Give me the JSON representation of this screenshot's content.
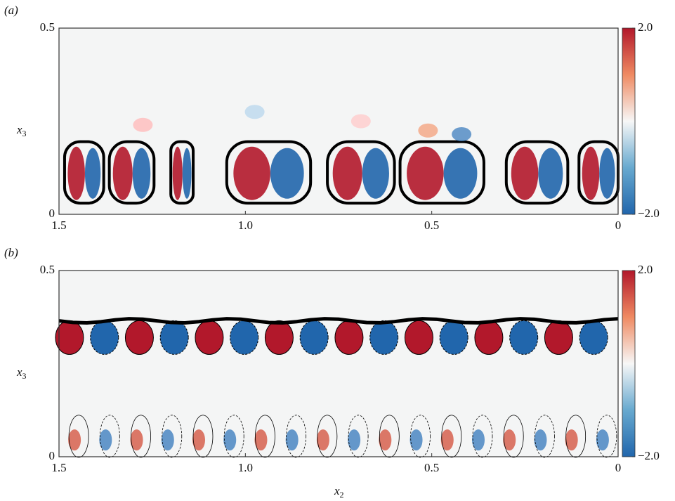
{
  "chart_data": [
    {
      "type": "heatmap",
      "panel_label": "(a)",
      "ylabel": "x3",
      "xlim": [
        1.5,
        0
      ],
      "xticks": [
        1.5,
        {
          "value": 1,
          "label": "1.0"
        },
        0.5,
        0
      ],
      "ylim": [
        0,
        0.5
      ],
      "yticks": [
        0,
        0.5
      ],
      "clim": [
        -2,
        2
      ],
      "cticks": [
        {
          "value": -2,
          "label": "−2.0"
        },
        {
          "value": 2,
          "label": "2.0"
        }
      ],
      "colormap": [
        "#2166ac",
        "#67a9cf",
        "#f7f7f7",
        "#ef8a62",
        "#b2182b"
      ]
    },
    {
      "type": "heatmap",
      "panel_label": "(b)",
      "ylabel": "x3",
      "xlabel": "x2",
      "xlim": [
        1.5,
        0
      ],
      "xticks": [
        1.5,
        {
          "value": 1,
          "label": "1.0"
        },
        0.5,
        0
      ],
      "ylim": [
        0,
        0.5
      ],
      "yticks": [
        0,
        0.5
      ],
      "clim": [
        -2,
        2
      ],
      "cticks": [
        {
          "value": -2,
          "label": "−2.0"
        },
        {
          "value": 2,
          "label": "2.0"
        }
      ],
      "colormap": [
        "#2166ac",
        "#67a9cf",
        "#f7f7f7",
        "#ef8a62",
        "#b2182b"
      ]
    }
  ]
}
